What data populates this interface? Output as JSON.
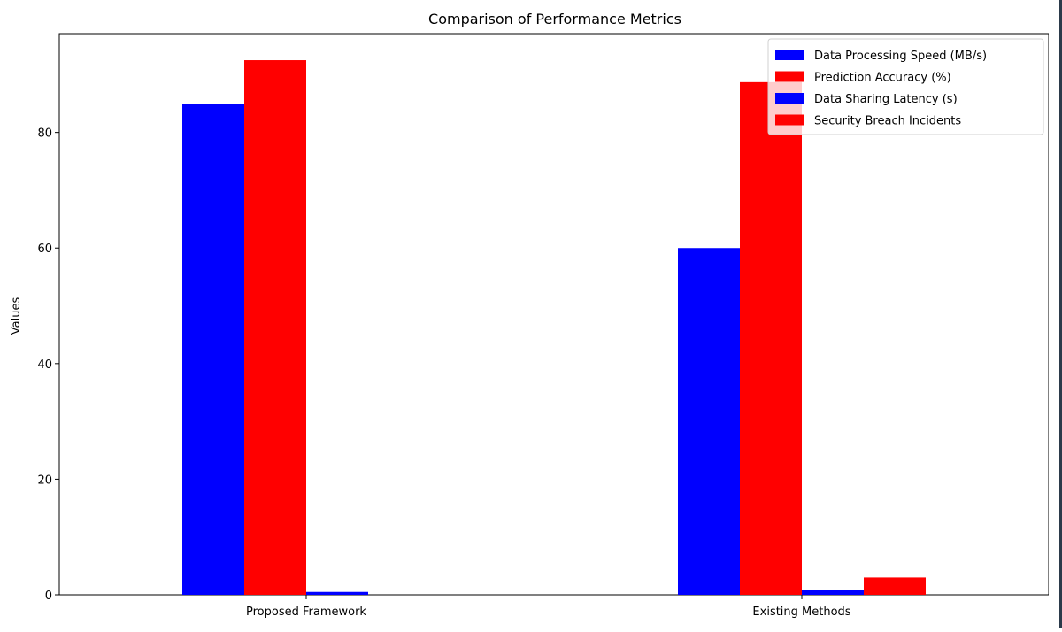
{
  "chart_data": {
    "type": "bar",
    "title": "Comparison of Performance Metrics",
    "xlabel": "",
    "ylabel": "Values",
    "categories": [
      "Proposed Framework",
      "Existing Methods"
    ],
    "series": [
      {
        "name": "Data Processing Speed (MB/s)",
        "color": "#0000ff",
        "values": [
          85,
          60
        ]
      },
      {
        "name": "Prediction Accuracy (%)",
        "color": "#ff0000",
        "values": [
          92.5,
          88.7
        ]
      },
      {
        "name": "Data Sharing Latency (s)",
        "color": "#0000ff",
        "values": [
          0.5,
          0.8
        ]
      },
      {
        "name": "Security Breach Incidents",
        "color": "#ff0000",
        "values": [
          0,
          3
        ]
      }
    ],
    "ylim": [
      0,
      97.1
    ],
    "yticks": [
      0,
      20,
      40,
      60,
      80
    ],
    "grid": false,
    "legend_position": "top-right"
  }
}
